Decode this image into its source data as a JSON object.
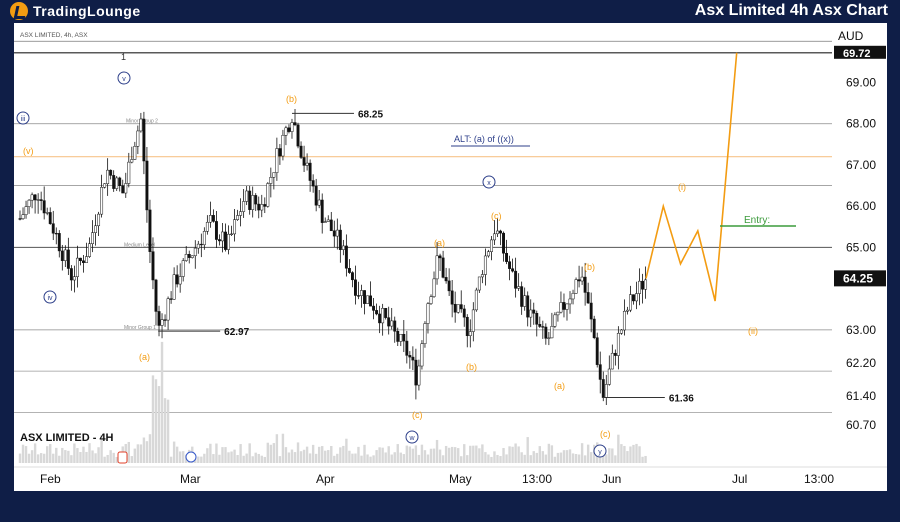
{
  "header": {
    "logo_text": "TradingLounge",
    "title": "Asx Limited 4h Asx Chart"
  },
  "chart_data": {
    "type": "candlestick",
    "symbol_line": "ASX LIMITED, 4h, ASX",
    "watermark": "ASX LIMITED - 4H",
    "currency": "AUD",
    "ylim": [
      60.5,
      70.2
    ],
    "y_ticks": [
      "69.00",
      "68.00",
      "67.00",
      "66.00",
      "65.00",
      "63.00",
      "62.20",
      "61.40",
      "60.70"
    ],
    "x_ticks": [
      "Feb",
      "Mar",
      "Apr",
      "May",
      "13:00",
      "Jun",
      "Jul",
      "13:00"
    ],
    "last_price": "64.25",
    "top_price": "69.72",
    "price_path": [
      {
        "t": 0,
        "p": 65.7
      },
      {
        "t": 4,
        "p": 66.4
      },
      {
        "t": 8,
        "p": 65.4
      },
      {
        "t": 12,
        "p": 64.3
      },
      {
        "t": 16,
        "p": 65.0
      },
      {
        "t": 20,
        "p": 66.9
      },
      {
        "t": 24,
        "p": 66.3
      },
      {
        "t": 26,
        "p": 67.4
      },
      {
        "t": 28,
        "p": 68.1
      },
      {
        "t": 30,
        "p": 65.0
      },
      {
        "t": 32,
        "p": 62.97
      },
      {
        "t": 36,
        "p": 64.2
      },
      {
        "t": 40,
        "p": 64.9
      },
      {
        "t": 44,
        "p": 65.6
      },
      {
        "t": 48,
        "p": 65.0
      },
      {
        "t": 52,
        "p": 66.2
      },
      {
        "t": 56,
        "p": 66.0
      },
      {
        "t": 60,
        "p": 67.4
      },
      {
        "t": 63,
        "p": 68.25
      },
      {
        "t": 66,
        "p": 67.0
      },
      {
        "t": 70,
        "p": 65.8
      },
      {
        "t": 74,
        "p": 65.1
      },
      {
        "t": 78,
        "p": 64.0
      },
      {
        "t": 82,
        "p": 63.6
      },
      {
        "t": 86,
        "p": 63.0
      },
      {
        "t": 90,
        "p": 62.4
      },
      {
        "t": 92,
        "p": 61.8
      },
      {
        "t": 94,
        "p": 63.5
      },
      {
        "t": 97,
        "p": 64.8
      },
      {
        "t": 100,
        "p": 63.6
      },
      {
        "t": 104,
        "p": 63.0
      },
      {
        "t": 107,
        "p": 64.5
      },
      {
        "t": 110,
        "p": 65.5
      },
      {
        "t": 114,
        "p": 64.3
      },
      {
        "t": 118,
        "p": 63.4
      },
      {
        "t": 122,
        "p": 62.7
      },
      {
        "t": 126,
        "p": 63.6
      },
      {
        "t": 130,
        "p": 64.4
      },
      {
        "t": 133,
        "p": 62.8
      },
      {
        "t": 135,
        "p": 61.36
      },
      {
        "t": 138,
        "p": 62.6
      },
      {
        "t": 141,
        "p": 63.6
      },
      {
        "t": 145,
        "p": 64.25
      }
    ],
    "price_labels": [
      {
        "text": "68.25",
        "value": 68.25
      },
      {
        "text": "62.97",
        "value": 62.97
      },
      {
        "text": "61.36",
        "value": 61.36
      }
    ],
    "levels": [
      {
        "label": "Minor Group 2",
        "value": 68.0
      },
      {
        "label": "Medium Level",
        "value": 65.0
      },
      {
        "label": "Minor Group 1",
        "value": 63.0
      }
    ],
    "wave_labels": {
      "orange": [
        "(b)",
        "(v)",
        "(a)",
        "(a)",
        "(c)",
        "(c)",
        "(b)",
        "(b)",
        "(a)",
        "(c)",
        "(i)",
        "(ii)"
      ],
      "navy_circled": [
        "v",
        "iii",
        "iv",
        "x",
        "w",
        "y"
      ],
      "plain": [
        "1"
      ]
    },
    "alt_label": "ALT: (a) of ((x))",
    "entry_label": "Entry:",
    "projection": [
      {
        "t": 145,
        "p": 64.25
      },
      {
        "t": 149,
        "p": 66.0
      },
      {
        "t": 153,
        "p": 64.6
      },
      {
        "t": 157,
        "p": 65.4
      },
      {
        "t": 161,
        "p": 63.7
      },
      {
        "t": 166,
        "p": 69.72
      }
    ],
    "colors": {
      "background": "#0f1e47",
      "plot": "#ffffff",
      "candle": "#111111",
      "wave_orange": "#f39c12",
      "wave_navy": "#2d3f8a",
      "entry_green": "#3c9b3c",
      "level_line": "#8a8a8a",
      "accent_line": "#f7c58b"
    }
  }
}
